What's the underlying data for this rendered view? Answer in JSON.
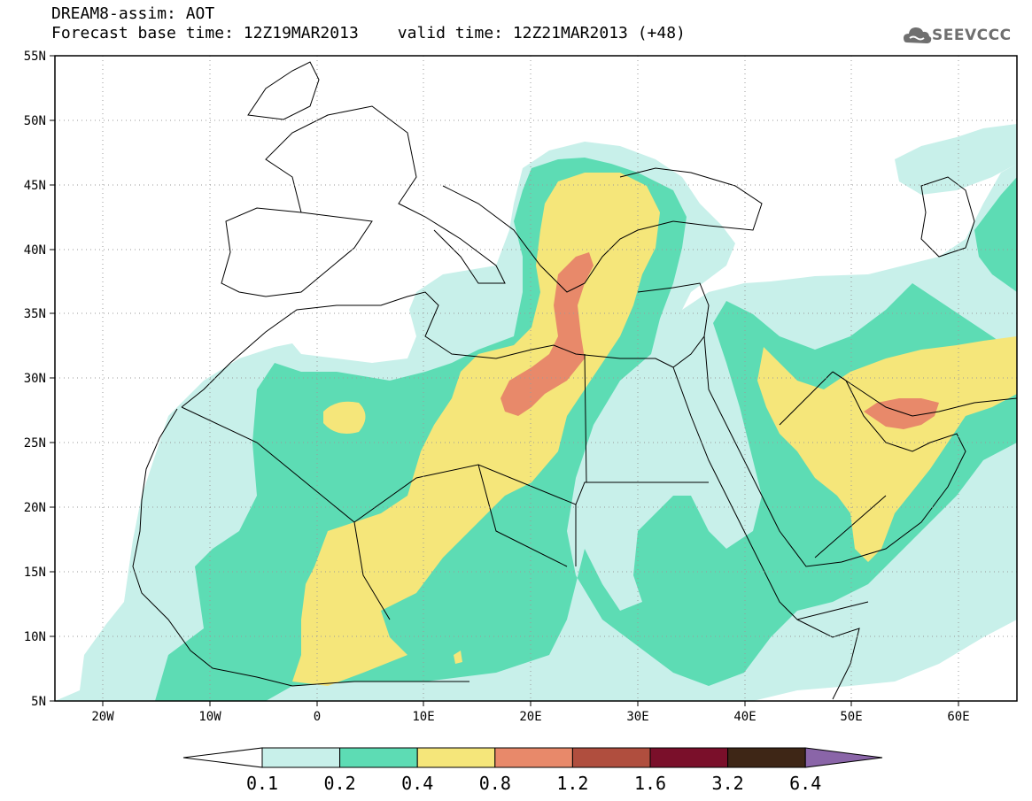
{
  "header": {
    "title": "DREAM8-assim: AOT",
    "base_time_label": "Forecast base time: 12Z19MAR2013",
    "valid_time_label": "valid time: 12Z21MAR2013 (+48)",
    "logo_text": "SEEVCCC"
  },
  "map": {
    "lon_range": [
      -25,
      65
    ],
    "lat_range": [
      5,
      55
    ],
    "lon_ticks": [
      "20W",
      "10W",
      "0",
      "10E",
      "20E",
      "30E",
      "40E",
      "50E",
      "60E"
    ],
    "lat_ticks": [
      "5N",
      "10N",
      "15N",
      "20N",
      "25N",
      "30N",
      "35N",
      "40N",
      "45N",
      "50N",
      "55N"
    ]
  },
  "colorbar": {
    "levels": [
      "0.1",
      "0.2",
      "0.4",
      "0.8",
      "1.2",
      "1.6",
      "3.2",
      "6.4"
    ],
    "colors": [
      "#c8f0ea",
      "#5ddcb4",
      "#f5e67a",
      "#e8896a",
      "#b04e3e",
      "#7a0f2a",
      "#3e2616",
      "#8a65a8"
    ]
  }
}
